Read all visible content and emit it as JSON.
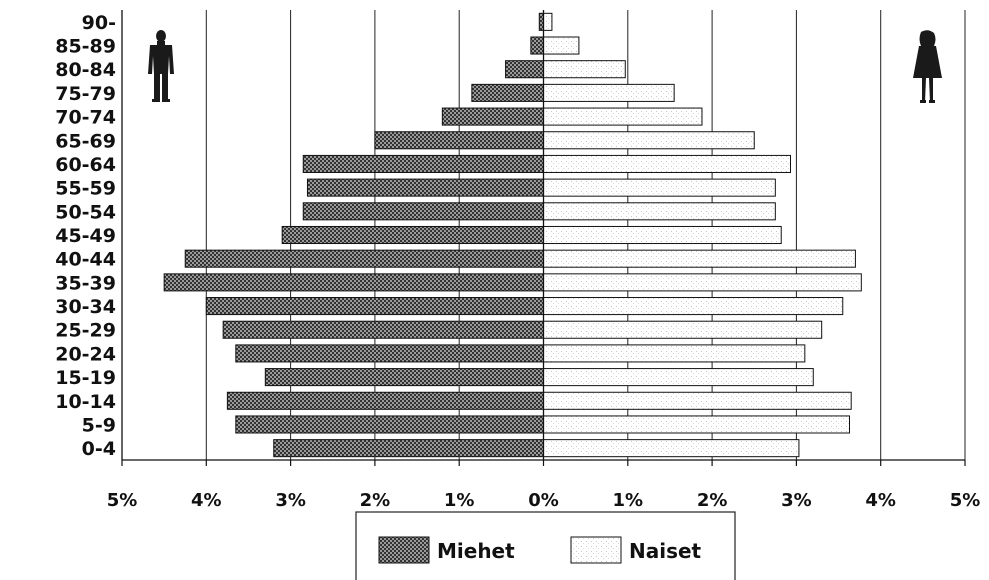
{
  "chart_data": {
    "type": "bar",
    "orientation": "horizontal",
    "categories": [
      "90-",
      "85-89",
      "80-84",
      "75-79",
      "70-74",
      "65-69",
      "60-64",
      "55-59",
      "50-54",
      "45-49",
      "40-44",
      "35-39",
      "30-34",
      "25-29",
      "20-24",
      "15-19",
      "10-14",
      "5-9",
      "0-4"
    ],
    "series": [
      {
        "name": "Miehet",
        "side": "left",
        "pattern": "crosshatch-dark",
        "values": [
          0.05,
          0.15,
          0.45,
          0.85,
          1.2,
          2.0,
          2.85,
          2.8,
          2.85,
          3.1,
          4.25,
          4.5,
          4.0,
          3.8,
          3.65,
          3.3,
          3.75,
          3.65,
          3.2
        ]
      },
      {
        "name": "Naiset",
        "side": "right",
        "pattern": "stipple-light",
        "values": [
          0.1,
          0.42,
          0.97,
          1.55,
          1.88,
          2.5,
          2.93,
          2.75,
          2.75,
          2.82,
          3.7,
          3.77,
          3.55,
          3.3,
          3.1,
          3.2,
          3.65,
          3.63,
          3.03
        ]
      }
    ],
    "x_ticks": [
      "5%",
      "4%",
      "3%",
      "2%",
      "1%",
      "0%",
      "1%",
      "2%",
      "3%",
      "4%",
      "5%"
    ],
    "xlim": [
      -5,
      5
    ],
    "grid": true,
    "legend_position": "bottom-center",
    "title": "",
    "xlabel": "",
    "ylabel": ""
  },
  "legend": {
    "male_label": "Miehet",
    "female_label": "Naiset"
  },
  "icons": {
    "male": "man-silhouette-icon",
    "female": "woman-silhouette-icon"
  },
  "colors": {
    "ink": "#111111",
    "male_fill": "#555555",
    "female_fill": "#f4f4f4"
  }
}
